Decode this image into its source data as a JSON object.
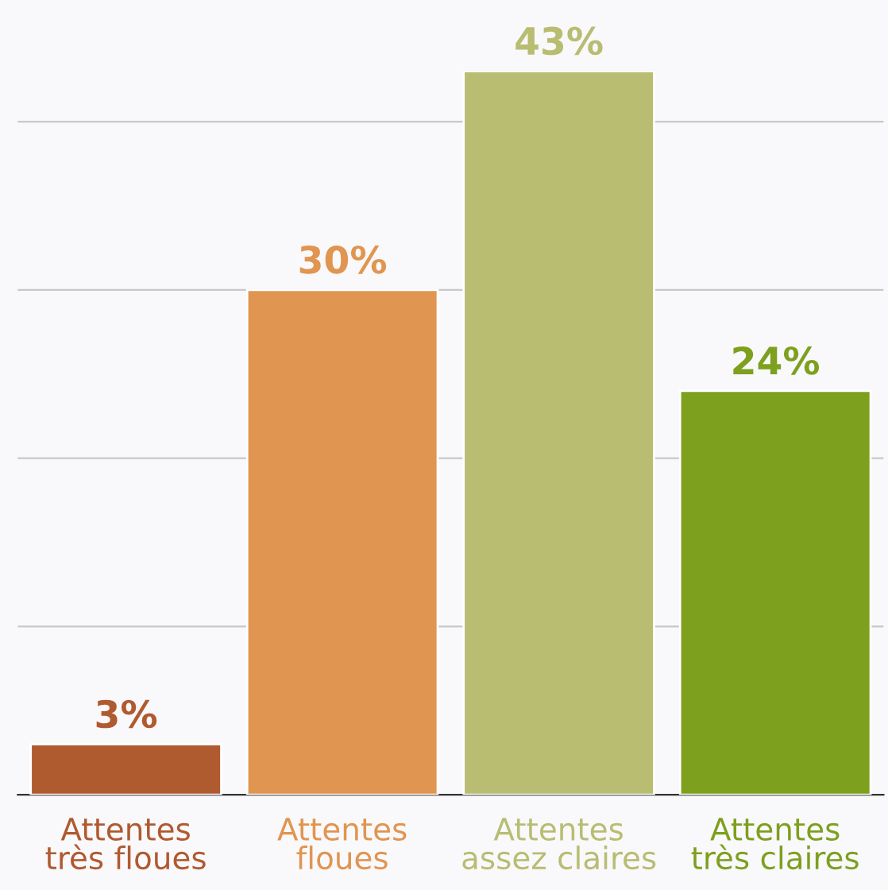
{
  "chart_data": {
    "type": "bar",
    "categories": [
      "Attentes\ntrès floues",
      "Attentes\nfloues",
      "Attentes\nassez claires",
      "Attentes\ntrès claires"
    ],
    "values": [
      3,
      30,
      43,
      24
    ],
    "colors": [
      "#b05a30",
      "#e09550",
      "#b8bd72",
      "#7da01e"
    ],
    "value_labels": [
      "3%",
      "30%",
      "43%",
      "24%"
    ],
    "ylim": [
      0,
      43
    ],
    "yticks": [
      {
        "value": 10,
        "label": null
      },
      {
        "value": 20,
        "label": null
      },
      {
        "value": 30,
        "label": null
      },
      {
        "value": 40,
        "label": null
      }
    ],
    "grid": "y",
    "tick_labels": "x",
    "legend": false
  }
}
